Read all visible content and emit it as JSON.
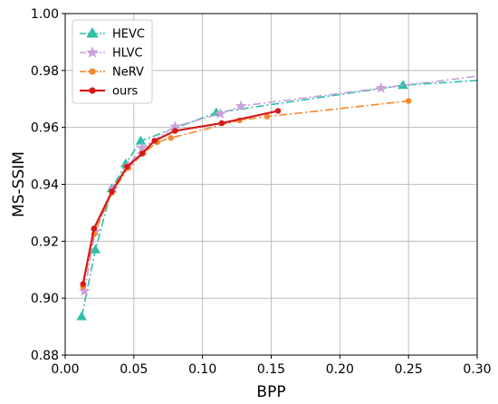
{
  "chart_data": {
    "type": "line",
    "title": "",
    "xlabel": "BPP",
    "ylabel": "MS-SSIM",
    "xlim": [
      0.0,
      0.3
    ],
    "ylim": [
      0.88,
      1.0
    ],
    "xticks": [
      "0.00",
      "0.05",
      "0.10",
      "0.15",
      "0.20",
      "0.25",
      "0.30"
    ],
    "yticks": [
      "0.88",
      "0.90",
      "0.92",
      "0.94",
      "0.96",
      "0.98",
      "1.00"
    ],
    "grid": true,
    "legend_position": "top-left",
    "series": [
      {
        "name": "HEVC",
        "color": "#2fbfa9",
        "marker": "triangle",
        "line_style": "dashdot",
        "points": [
          [
            0.012,
            0.8935
          ],
          [
            0.022,
            0.917
          ],
          [
            0.034,
            0.9385
          ],
          [
            0.044,
            0.9472
          ],
          [
            0.055,
            0.9552
          ],
          [
            0.11,
            0.9652
          ],
          [
            0.246,
            0.9748
          ],
          [
            0.3,
            0.9765
          ]
        ]
      },
      {
        "name": "HLVC",
        "color": "#c9a0dc",
        "marker": "star",
        "line_style": "dashdot",
        "points": [
          [
            0.014,
            0.9025
          ],
          [
            0.022,
            0.9235
          ],
          [
            0.035,
            0.9385
          ],
          [
            0.046,
            0.9465
          ],
          [
            0.056,
            0.9528
          ],
          [
            0.08,
            0.9603
          ],
          [
            0.113,
            0.9648
          ],
          [
            0.128,
            0.9675
          ],
          [
            0.23,
            0.9738
          ],
          [
            0.3,
            0.978
          ]
        ]
      },
      {
        "name": "NeRV",
        "color": "#f5862a",
        "marker": "circle",
        "line_style": "dashdot",
        "points": [
          [
            0.013,
            0.904
          ],
          [
            0.021,
            0.9225
          ],
          [
            0.034,
            0.937
          ],
          [
            0.046,
            0.9458
          ],
          [
            0.057,
            0.951
          ],
          [
            0.067,
            0.9548
          ],
          [
            0.077,
            0.9563
          ],
          [
            0.127,
            0.9625
          ],
          [
            0.147,
            0.9638
          ],
          [
            0.25,
            0.9693
          ]
        ]
      },
      {
        "name": "ours",
        "color": "#d41a1a",
        "marker": "circle",
        "line_style": "solid",
        "points": [
          [
            0.013,
            0.905
          ],
          [
            0.021,
            0.9245
          ],
          [
            0.034,
            0.9375
          ],
          [
            0.045,
            0.9462
          ],
          [
            0.056,
            0.9508
          ],
          [
            0.065,
            0.9553
          ],
          [
            0.08,
            0.9588
          ],
          [
            0.114,
            0.9615
          ],
          [
            0.155,
            0.9658
          ]
        ]
      }
    ]
  }
}
